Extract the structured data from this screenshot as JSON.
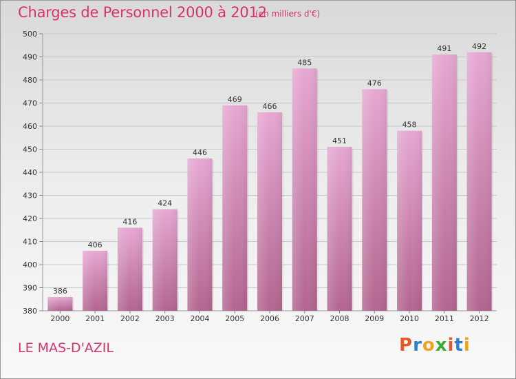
{
  "header": {
    "title": "Charges de Personnel 2000 à 2012",
    "subtitle": "(en milliers d'€)"
  },
  "footer": {
    "place": "LE MAS-D'AZIL",
    "logo": "Proxiti"
  },
  "colors": {
    "title": "#d6336c",
    "bar_top": "#e6a8d2",
    "bar_bottom": "#b2658f",
    "logo": [
      "#e8572a",
      "#2f7fd0",
      "#f2a11e",
      "#3aa935",
      "#e8572a",
      "#2f7fd0",
      "#f2a11e"
    ]
  },
  "chart_data": {
    "type": "bar",
    "title": "Charges de Personnel 2000 à 2012",
    "subtitle": "(en milliers d'€)",
    "categories": [
      "2000",
      "2001",
      "2002",
      "2003",
      "2004",
      "2005",
      "2006",
      "2007",
      "2008",
      "2009",
      "2010",
      "2011",
      "2012"
    ],
    "values": [
      386,
      406,
      416,
      424,
      446,
      469,
      466,
      485,
      451,
      476,
      458,
      491,
      492
    ],
    "ylim": [
      380,
      500
    ],
    "yticks": [
      380,
      390,
      400,
      410,
      420,
      430,
      440,
      450,
      460,
      470,
      480,
      490,
      500
    ],
    "grid": true
  }
}
